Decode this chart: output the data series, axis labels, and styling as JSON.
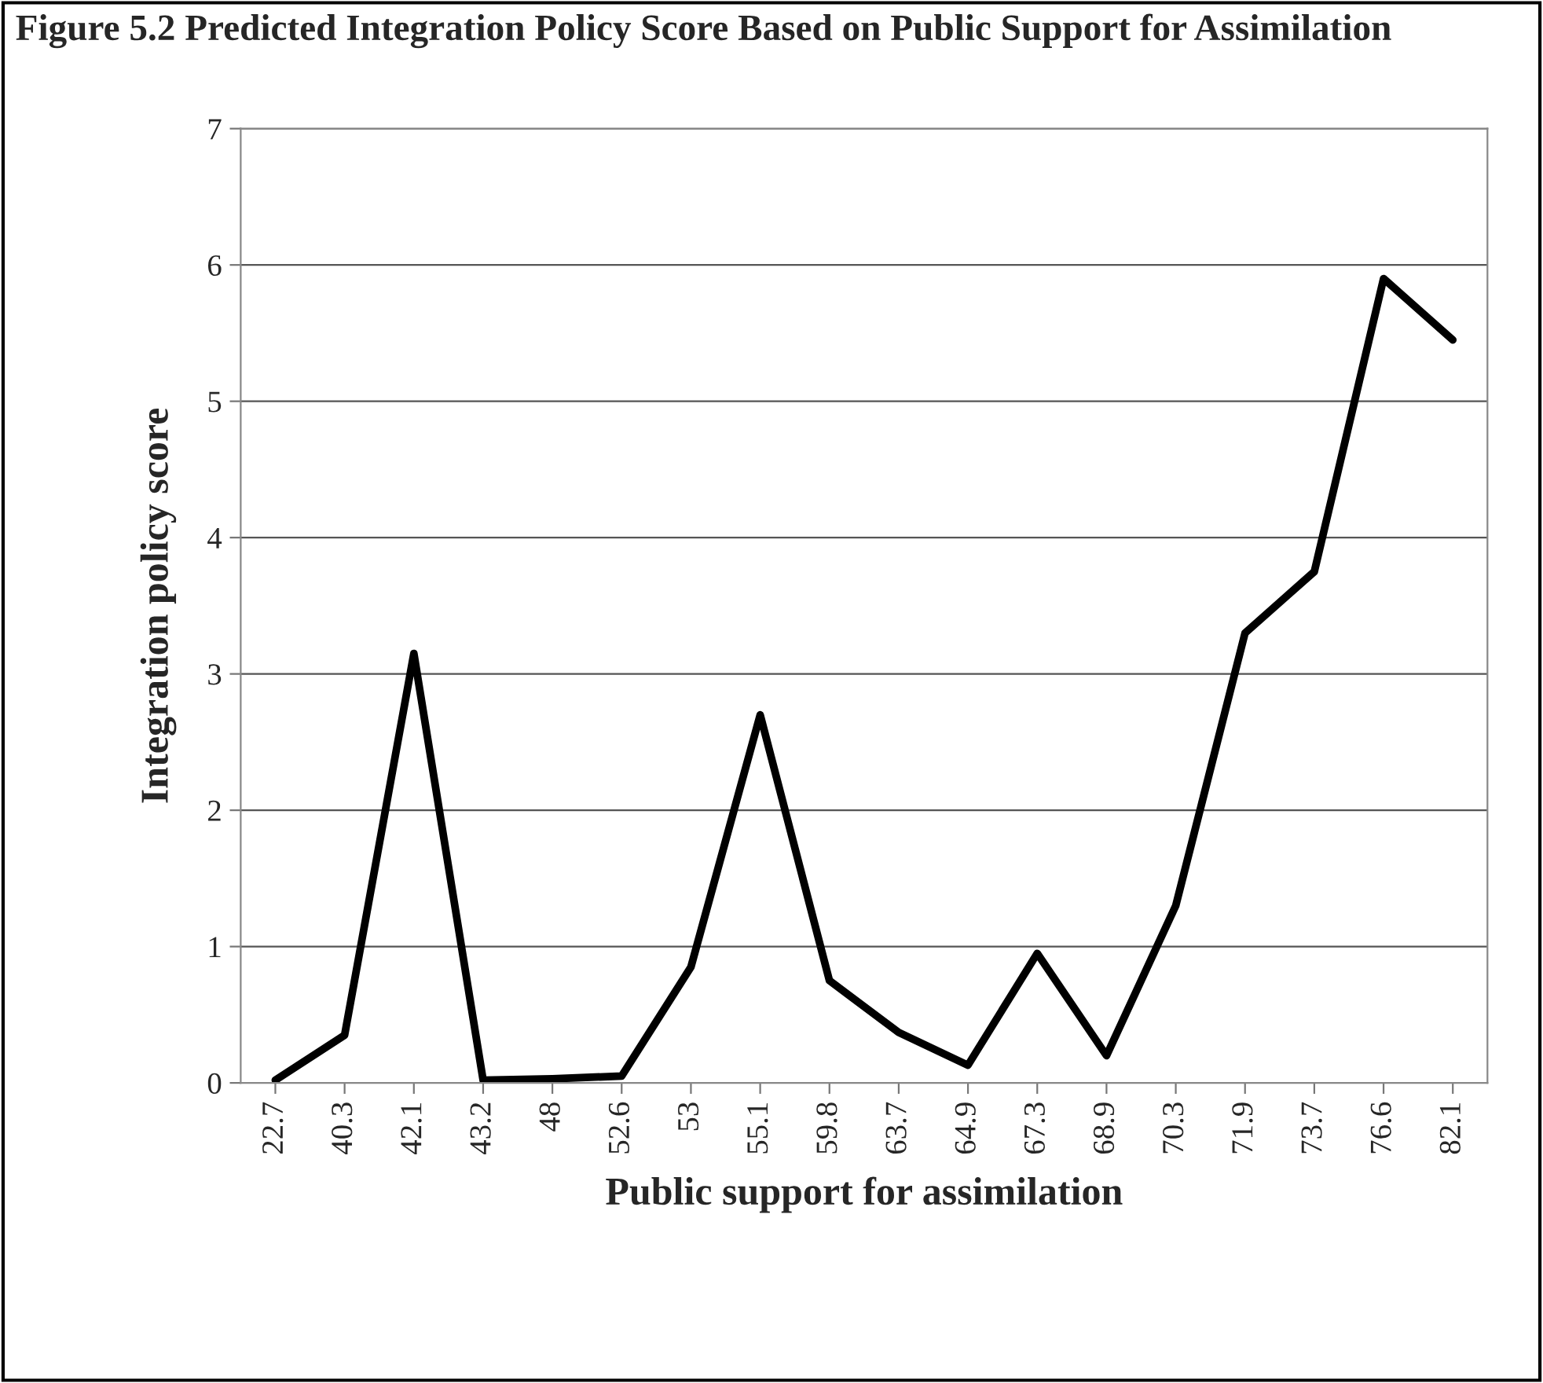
{
  "chart_data": {
    "type": "line",
    "title": "Figure 5.2 Predicted Integration Policy Score Based on Public Support for Assimilation",
    "xlabel": "Public support for assimilation",
    "ylabel": "Integration policy score",
    "categories": [
      "22.7",
      "40.3",
      "42.1",
      "43.2",
      "48",
      "52.6",
      "53",
      "55.1",
      "59.8",
      "63.7",
      "64.9",
      "67.3",
      "68.9",
      "70.3",
      "71.9",
      "73.7",
      "76.6",
      "82.1"
    ],
    "series": [
      {
        "color": "#000000",
        "values": [
          0.02,
          0.35,
          3.15,
          0.02,
          0.03,
          0.05,
          0.85,
          2.7,
          0.75,
          0.37,
          0.13,
          0.95,
          0.2,
          1.3,
          3.3,
          3.75,
          5.9,
          5.45
        ]
      }
    ],
    "ylim": [
      0,
      7
    ],
    "yticks": [
      0,
      1,
      2,
      3,
      4,
      5,
      6,
      7
    ],
    "grid": "y",
    "marker": "none",
    "line_style": "solid"
  }
}
